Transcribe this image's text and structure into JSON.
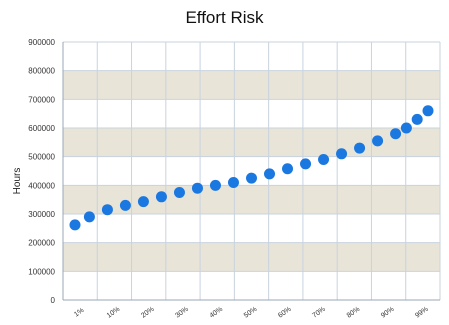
{
  "chart_data": {
    "type": "scatter",
    "title": "Effort Risk",
    "xlabel": "",
    "ylabel": "Hours",
    "ylim": [
      0,
      900000
    ],
    "yticks": [
      "0",
      "100000",
      "200000",
      "300000",
      "400000",
      "500000",
      "600000",
      "700000",
      "800000",
      "900000"
    ],
    "xticks": [
      "1%",
      "10%",
      "20%",
      "30%",
      "40%",
      "50%",
      "60%",
      "70%",
      "80%",
      "90%",
      "99%"
    ],
    "grid": true,
    "band_colors": [
      "#ffffff",
      "#e8e4d8"
    ],
    "point_color": "#1a78e0",
    "x": [
      1,
      5,
      10,
      15,
      20,
      25,
      30,
      35,
      40,
      45,
      50,
      55,
      60,
      65,
      70,
      75,
      80,
      85,
      90,
      93,
      96,
      99
    ],
    "values": [
      262000,
      290000,
      315000,
      330000,
      343000,
      360000,
      375000,
      390000,
      400000,
      410000,
      425000,
      440000,
      458000,
      475000,
      490000,
      510000,
      530000,
      555000,
      580000,
      600000,
      630000,
      660000
    ]
  }
}
